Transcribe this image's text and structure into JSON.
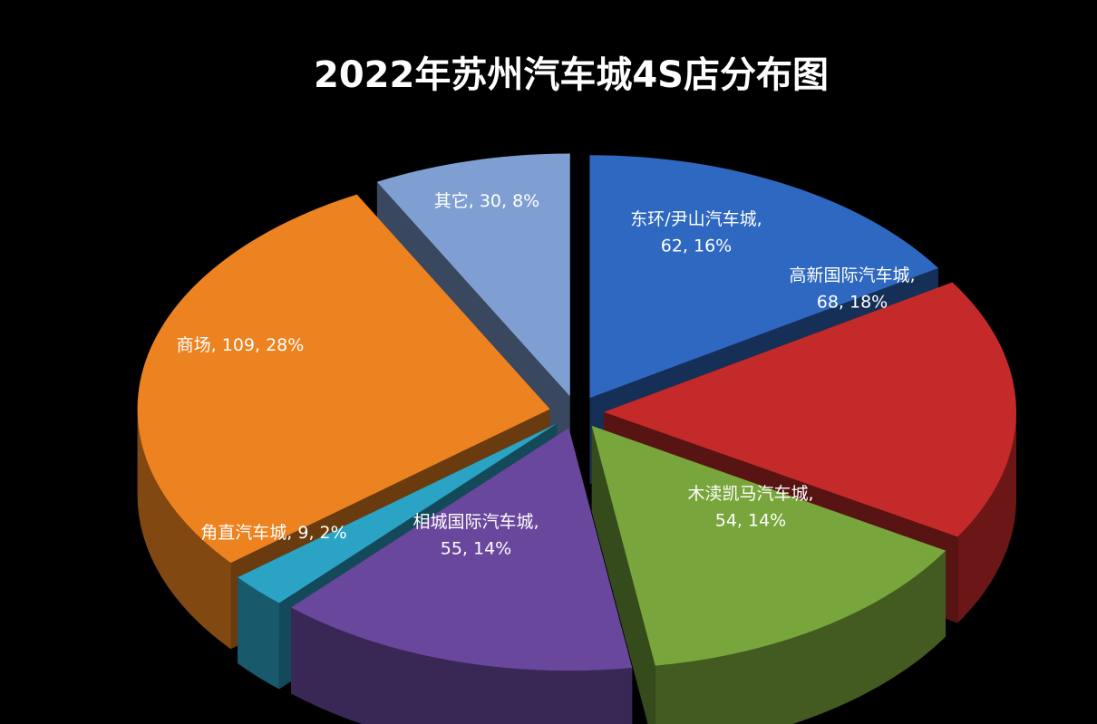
{
  "chart_data": {
    "type": "pie",
    "title": "2022年苏州汽车城4S店分布图",
    "slices": [
      {
        "name": "东环/尹山汽车城",
        "value": 62,
        "percent": "16%",
        "color": "#2e68c0",
        "label_lines": [
          "东环/尹山汽车城,",
          "62, 16%"
        ]
      },
      {
        "name": "高新国际汽车城",
        "value": 68,
        "percent": "18%",
        "color": "#c42a2a",
        "label_lines": [
          "高新国际汽车城,",
          "68, 18%"
        ]
      },
      {
        "name": "木渎凯马汽车城",
        "value": 54,
        "percent": "14%",
        "color": "#79a63c",
        "label_lines": [
          "木渎凯马汽车城,",
          "54, 14%"
        ]
      },
      {
        "name": "相城国际汽车城",
        "value": 55,
        "percent": "14%",
        "color": "#68479c",
        "label_lines": [
          "相城国际汽车城,",
          "55, 14%"
        ]
      },
      {
        "name": "角直汽车城",
        "value": 9,
        "percent": "2%",
        "color": "#2ba3c4",
        "label_lines": [
          "角直汽车城, 9, 2%"
        ]
      },
      {
        "name": "商场",
        "value": 109,
        "percent": "28%",
        "color": "#ec8220",
        "label_lines": [
          "商场, 109, 28%"
        ]
      },
      {
        "name": "其它",
        "value": 30,
        "percent": "8%",
        "color": "#7f9fd2",
        "label_lines": [
          "其它, 30, 8%"
        ]
      }
    ]
  }
}
